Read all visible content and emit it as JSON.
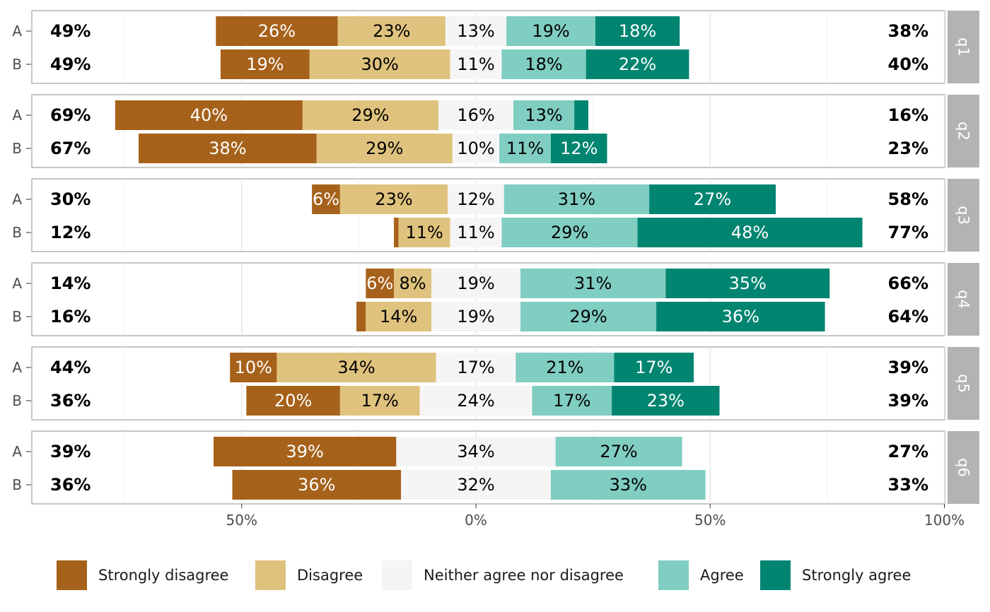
{
  "chart_data": {
    "type": "bar",
    "subtype": "diverging-stacked-likert",
    "title": "",
    "xlabel": "",
    "ylabel": "",
    "x_ticks": [
      "50%",
      "0%",
      "50%",
      "100%"
    ],
    "x_tick_values": [
      -50,
      0,
      50,
      100
    ],
    "grid": true,
    "legend_position": "bottom",
    "levels": [
      "Strongly disagree",
      "Disagree",
      "Neither agree nor disagree",
      "Agree",
      "Strongly agree"
    ],
    "colors": [
      "#a6611a",
      "#dfc27d",
      "#f5f5f5",
      "#80cdc1",
      "#018571"
    ],
    "label_colors": [
      "#ffffff",
      "#000000",
      "#000000",
      "#000000",
      "#ffffff"
    ],
    "facets": [
      {
        "name": "q1",
        "rows": [
          {
            "group": "A",
            "values": [
              26,
              23,
              13,
              19,
              18
            ],
            "labels": [
              "26%",
              "23%",
              "13%",
              "19%",
              "18%"
            ],
            "left_total": "49%",
            "right_total": "38%"
          },
          {
            "group": "B",
            "values": [
              19,
              30,
              11,
              18,
              22
            ],
            "labels": [
              "19%",
              "30%",
              "11%",
              "18%",
              "22%"
            ],
            "left_total": "49%",
            "right_total": "40%"
          }
        ]
      },
      {
        "name": "q2",
        "rows": [
          {
            "group": "A",
            "values": [
              40,
              29,
              16,
              13,
              3
            ],
            "labels": [
              "40%",
              "29%",
              "16%",
              "13%",
              ""
            ],
            "left_total": "69%",
            "right_total": "16%"
          },
          {
            "group": "B",
            "values": [
              38,
              29,
              10,
              11,
              12
            ],
            "labels": [
              "38%",
              "29%",
              "10%",
              "11%",
              "12%"
            ],
            "left_total": "67%",
            "right_total": "23%"
          }
        ]
      },
      {
        "name": "q3",
        "rows": [
          {
            "group": "A",
            "values": [
              6,
              23,
              12,
              31,
              27
            ],
            "labels": [
              "6%",
              "23%",
              "12%",
              "31%",
              "27%"
            ],
            "left_total": "30%",
            "right_total": "58%"
          },
          {
            "group": "B",
            "values": [
              1,
              11,
              11,
              29,
              48
            ],
            "labels": [
              "",
              "11%",
              "11%",
              "29%",
              "48%"
            ],
            "left_total": "12%",
            "right_total": "77%"
          }
        ]
      },
      {
        "name": "q4",
        "rows": [
          {
            "group": "A",
            "values": [
              6,
              8,
              19,
              31,
              35
            ],
            "labels": [
              "6%",
              "8%",
              "19%",
              "31%",
              "35%"
            ],
            "left_total": "14%",
            "right_total": "66%"
          },
          {
            "group": "B",
            "values": [
              2,
              14,
              19,
              29,
              36
            ],
            "labels": [
              "",
              "14%",
              "19%",
              "29%",
              "36%"
            ],
            "left_total": "16%",
            "right_total": "64%"
          }
        ]
      },
      {
        "name": "q5",
        "rows": [
          {
            "group": "A",
            "values": [
              10,
              34,
              17,
              21,
              17
            ],
            "labels": [
              "10%",
              "34%",
              "17%",
              "21%",
              "17%"
            ],
            "left_total": "44%",
            "right_total": "39%"
          },
          {
            "group": "B",
            "values": [
              20,
              17,
              24,
              17,
              23
            ],
            "labels": [
              "20%",
              "17%",
              "24%",
              "17%",
              "23%"
            ],
            "left_total": "36%",
            "right_total": "39%"
          }
        ]
      },
      {
        "name": "q6",
        "rows": [
          {
            "group": "A",
            "values": [
              39,
              0,
              34,
              27,
              0
            ],
            "labels": [
              "39%",
              "",
              "34%",
              "27%",
              ""
            ],
            "left_total": "39%",
            "right_total": "27%"
          },
          {
            "group": "B",
            "values": [
              36,
              0,
              32,
              33,
              0
            ],
            "labels": [
              "36%",
              "",
              "32%",
              "33%",
              ""
            ],
            "left_total": "36%",
            "right_total": "33%"
          }
        ]
      }
    ]
  }
}
